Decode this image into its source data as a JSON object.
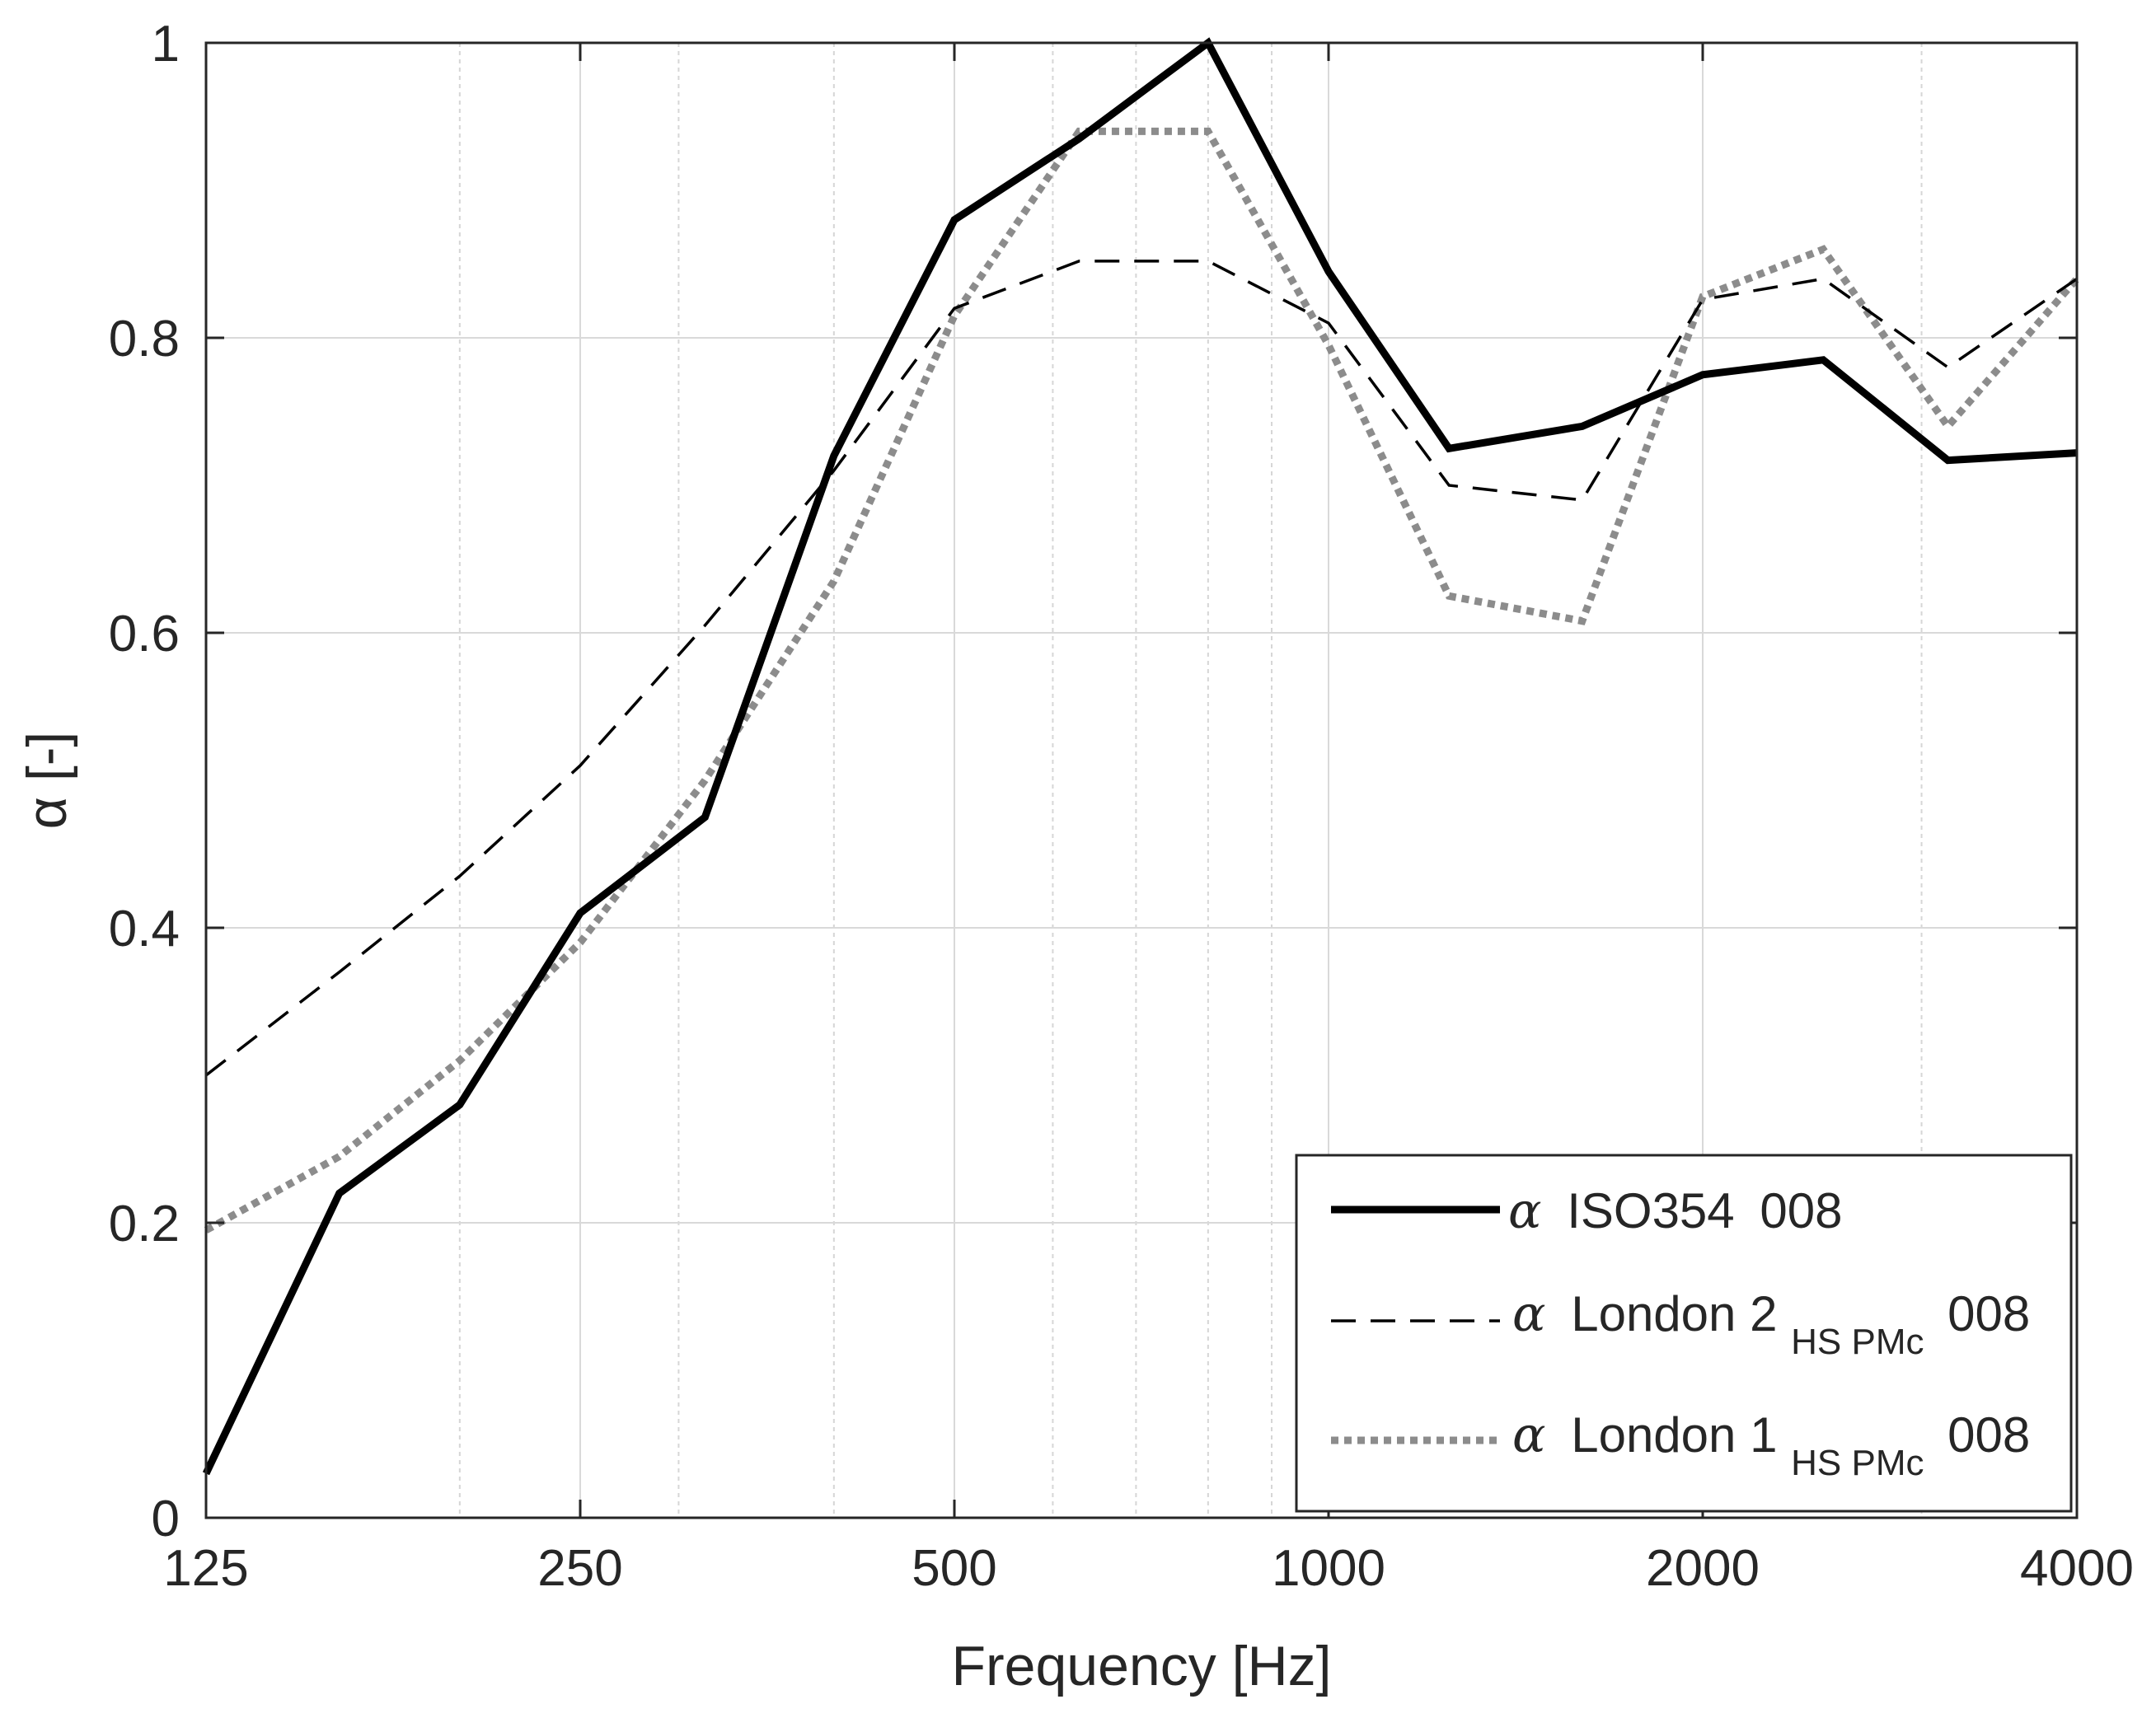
{
  "chart_data": {
    "type": "line",
    "title": "",
    "xlabel": "Frequency [Hz]",
    "ylabel": "α [-]",
    "xscale": "log2",
    "xlim": [
      125,
      4000
    ],
    "ylim": [
      0,
      1
    ],
    "grid": true,
    "legend_position": "bottom-right",
    "x_ticks": [
      125,
      250,
      500,
      1000,
      2000,
      4000
    ],
    "x_tick_labels": [
      "125",
      "250",
      "500",
      "1000",
      "2000",
      "4000"
    ],
    "y_ticks": [
      0,
      0.2,
      0.4,
      0.6,
      0.8,
      1
    ],
    "y_tick_labels": [
      "0",
      "0.2",
      "0.4",
      "0.6",
      "0.8",
      "1"
    ],
    "series": [
      {
        "name": "α ISO354 008",
        "legend_prefix": "α",
        "legend_main": "ISO354",
        "legend_sub": "",
        "legend_suffix": "008",
        "style": "solid",
        "color": "#000000",
        "x": [
          125,
          160,
          200,
          250,
          315,
          400,
          500,
          630,
          800,
          1000,
          1250,
          1600,
          2000,
          2500,
          3150,
          4000
        ],
        "values": [
          0.03,
          0.22,
          0.28,
          0.41,
          0.475,
          0.72,
          0.88,
          0.935,
          1.0,
          0.845,
          0.725,
          0.74,
          0.775,
          0.785,
          0.717,
          0.722
        ]
      },
      {
        "name": "α London 2 HS PMc 008",
        "legend_prefix": "α",
        "legend_main": "London 2",
        "legend_sub": "HS PMc",
        "legend_suffix": "008",
        "style": "dashed",
        "color": "#000000",
        "x": [
          125,
          160,
          200,
          250,
          315,
          400,
          500,
          630,
          800,
          1000,
          1250,
          1600,
          2000,
          2500,
          3150,
          4000
        ],
        "values": [
          0.3,
          0.37,
          0.435,
          0.51,
          0.605,
          0.71,
          0.82,
          0.852,
          0.852,
          0.81,
          0.7,
          0.69,
          0.826,
          0.84,
          0.78,
          0.84
        ]
      },
      {
        "name": "α London 1 HS PMc 008",
        "legend_prefix": "α",
        "legend_main": "London 1",
        "legend_sub": "HS PMc",
        "legend_suffix": "008",
        "style": "dotted",
        "color": "#8c8c8c",
        "x": [
          125,
          160,
          200,
          250,
          315,
          400,
          500,
          630,
          800,
          1000,
          1250,
          1600,
          2000,
          2500,
          3150,
          4000
        ],
        "values": [
          0.195,
          0.245,
          0.31,
          0.39,
          0.5,
          0.635,
          0.815,
          0.94,
          0.94,
          0.795,
          0.625,
          0.608,
          0.828,
          0.86,
          0.74,
          0.84
        ]
      }
    ]
  }
}
